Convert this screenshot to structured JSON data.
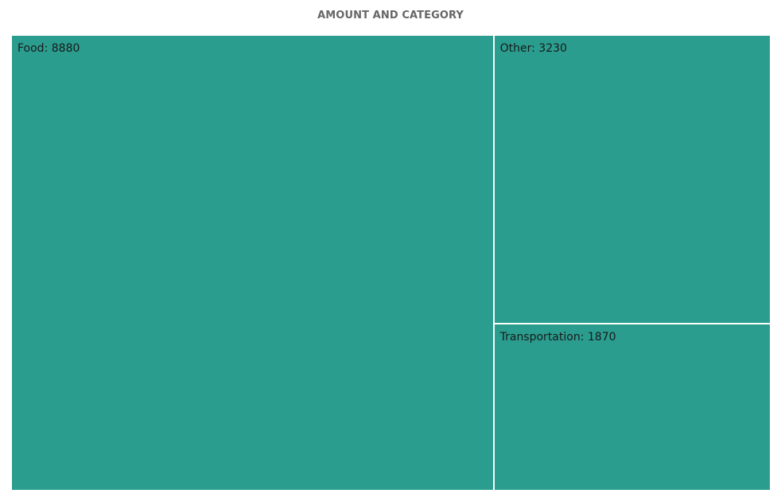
{
  "chart_data": {
    "type": "treemap",
    "title": "AMOUNT AND CATEGORY",
    "color": "#2a9d8f",
    "categories": [
      "Food",
      "Other",
      "Transportation"
    ],
    "values": [
      8880,
      3230,
      1870
    ]
  }
}
